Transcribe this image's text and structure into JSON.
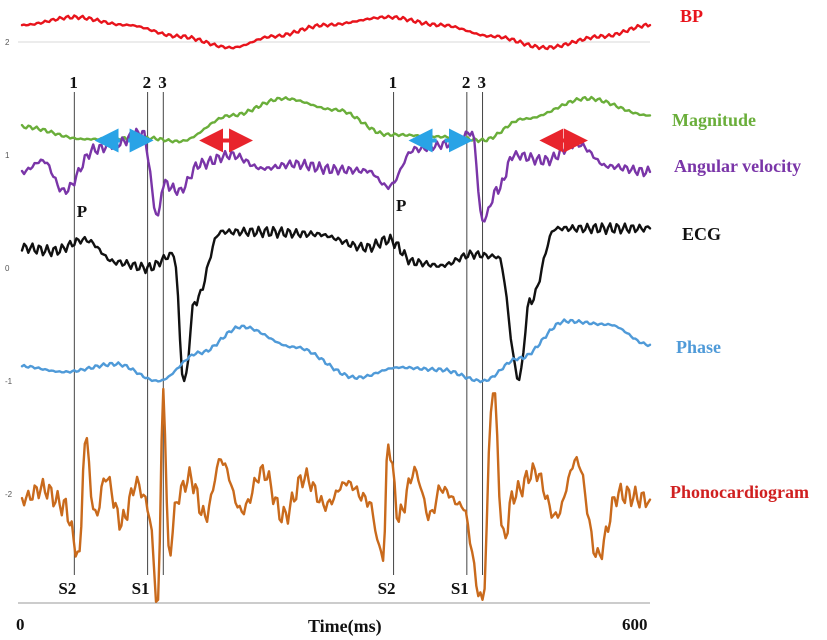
{
  "chart_data": {
    "type": "line",
    "title": "",
    "xlabel": "Time(ms)",
    "ylabel": "",
    "xlim": [
      0,
      600
    ],
    "x_tick_labels": [
      "0",
      "600"
    ],
    "y_tick_labels": [
      "2",
      "1",
      "0",
      "-1",
      "-2"
    ],
    "ylim": [
      -2.8,
      2.2
    ],
    "grid": false,
    "legend": "right (labels beside each trace)",
    "series": [
      {
        "name": "BP",
        "color": "#e8141c",
        "x": [
          0,
          50,
          100,
          150,
          200,
          240,
          290,
          350,
          400,
          450,
          500,
          555,
          600
        ],
        "y": [
          2.15,
          2.22,
          2.15,
          2.05,
          1.95,
          2.05,
          2.15,
          2.22,
          2.15,
          2.05,
          1.95,
          2.05,
          2.15
        ]
      },
      {
        "name": "Magnitude",
        "color": "#6aae3a",
        "x": [
          0,
          60,
          120,
          150,
          200,
          250,
          300,
          350,
          410,
          440,
          480,
          540,
          600
        ],
        "y": [
          1.25,
          1.14,
          1.15,
          1.12,
          1.35,
          1.5,
          1.4,
          1.18,
          1.16,
          1.13,
          1.32,
          1.5,
          1.35
        ]
      },
      {
        "name": "Angular velocity",
        "color": "#7a35a8",
        "x": [
          0,
          20,
          40,
          70,
          90,
          115,
          130,
          135,
          150,
          170,
          200,
          230,
          260,
          300,
          330,
          350,
          375,
          410,
          430,
          440,
          455,
          470,
          500,
          530,
          560,
          600
        ],
        "y": [
          0.85,
          0.95,
          0.68,
          1.05,
          1.1,
          1.2,
          0.45,
          0.75,
          0.68,
          0.92,
          1.0,
          0.88,
          0.92,
          0.87,
          0.86,
          0.72,
          1.05,
          1.1,
          1.2,
          0.42,
          0.7,
          1.0,
          0.95,
          1.1,
          0.9,
          0.85
        ]
      },
      {
        "name": "ECG",
        "color": "#111111",
        "x": [
          0,
          30,
          60,
          90,
          120,
          145,
          155,
          165,
          190,
          230,
          280,
          330,
          350,
          375,
          400,
          430,
          455,
          475,
          485,
          510,
          550,
          600
        ],
        "y": [
          0.18,
          0.15,
          0.25,
          0.05,
          0.0,
          0.12,
          -1.02,
          -0.3,
          0.32,
          0.32,
          0.3,
          0.18,
          0.25,
          0.05,
          0.02,
          0.12,
          0.1,
          -0.98,
          -0.3,
          0.35,
          0.35,
          0.35
        ]
      },
      {
        "name": "Phase",
        "color": "#4f9ad8",
        "x": [
          0,
          40,
          90,
          130,
          170,
          210,
          260,
          320,
          360,
          400,
          440,
          475,
          520,
          560,
          600
        ],
        "y": [
          -0.87,
          -0.92,
          -0.85,
          -1.0,
          -0.75,
          -0.52,
          -0.7,
          -0.97,
          -0.88,
          -0.9,
          -1.0,
          -0.8,
          -0.47,
          -0.5,
          -0.68
        ]
      },
      {
        "name": "Phonocardiogram",
        "color": "#c96a1c",
        "x": [
          0,
          20,
          40,
          55,
          60,
          70,
          80,
          95,
          110,
          120,
          130,
          135,
          140,
          150,
          160,
          175,
          190,
          210,
          230,
          250,
          270,
          290,
          310,
          330,
          345,
          350,
          360,
          375,
          390,
          400,
          420,
          440,
          450,
          460,
          470,
          490,
          510,
          530,
          550,
          570,
          600
        ],
        "y": [
          -2.05,
          -1.95,
          -2.1,
          -2.55,
          -1.5,
          -2.2,
          -1.85,
          -2.25,
          -1.9,
          -2.1,
          -2.95,
          -1.05,
          -2.5,
          -2.0,
          -1.85,
          -2.2,
          -1.7,
          -2.15,
          -1.8,
          -2.2,
          -1.85,
          -2.1,
          -1.9,
          -2.05,
          -2.55,
          -1.55,
          -2.2,
          -1.8,
          -2.2,
          -1.95,
          -2.1,
          -2.95,
          -1.05,
          -2.4,
          -2.0,
          -1.8,
          -2.2,
          -1.7,
          -2.55,
          -2.0,
          -2.05
        ]
      }
    ],
    "event_markers": [
      {
        "x": 50,
        "top_label": "1",
        "bottom_label": "S2"
      },
      {
        "x": 120,
        "top_label": "2",
        "bottom_label": "S1"
      },
      {
        "x": 135,
        "top_label": "3",
        "bottom_label": ""
      },
      {
        "x": 355,
        "top_label": "1",
        "bottom_label": "S2"
      },
      {
        "x": 425,
        "top_label": "2",
        "bottom_label": "S1"
      },
      {
        "x": 440,
        "top_label": "3",
        "bottom_label": ""
      }
    ],
    "annotations": [
      {
        "text": "P",
        "x": 58,
        "y": 0.4
      },
      {
        "text": "P",
        "x": 363,
        "y": 0.45
      }
    ],
    "arrows": [
      {
        "color": "#29a3e6",
        "style": "double-dashed",
        "x_start": 75,
        "x_end": 120,
        "y": 0.58
      },
      {
        "color": "#e8242c",
        "style": "double",
        "x_start": 175,
        "x_end": 215,
        "y": 0.58
      },
      {
        "color": "#29a3e6",
        "style": "double-dashed",
        "x_start": 375,
        "x_end": 425,
        "y": 0.58
      },
      {
        "color": "#e8242c",
        "style": "double",
        "x_start": 500,
        "x_end": 535,
        "y": 0.58
      }
    ]
  }
}
